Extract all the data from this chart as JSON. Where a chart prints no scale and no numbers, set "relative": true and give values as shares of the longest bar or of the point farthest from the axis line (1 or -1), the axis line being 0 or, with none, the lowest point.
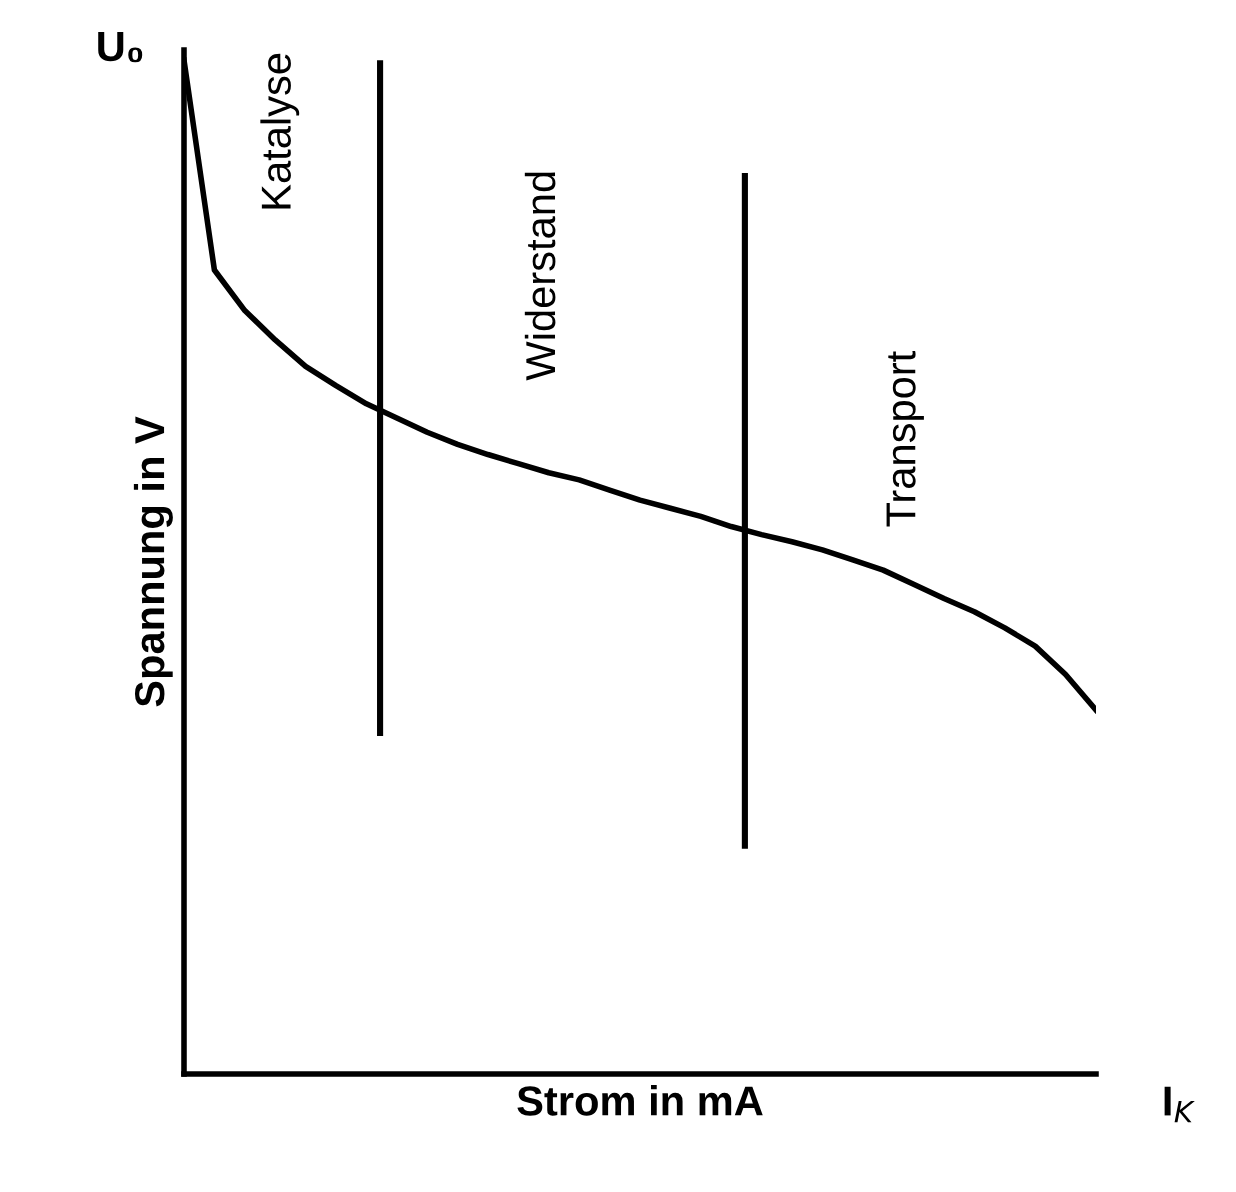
{
  "chart_data": {
    "type": "line",
    "relative": true,
    "xlabel": "Strom in mA",
    "ylabel": "Spannung in V",
    "categories": [
      null,
      null,
      null,
      null,
      null,
      null,
      null,
      null,
      null,
      null,
      null,
      null,
      null,
      null,
      null,
      null,
      null,
      null,
      null,
      null,
      null,
      null,
      null,
      null,
      null,
      null,
      null,
      null,
      null,
      null,
      null
    ],
    "series": [
      {
        "color": "#000000",
        "values": [
          1.0,
          0.793,
          0.753,
          0.724,
          0.698,
          0.679,
          0.661,
          0.647,
          0.633,
          0.621,
          0.611,
          0.602,
          0.593,
          0.586,
          0.576,
          0.566,
          0.558,
          0.55,
          0.54,
          0.532,
          0.525,
          0.517,
          0.507,
          0.497,
          0.483,
          0.469,
          0.456,
          0.44,
          0.422,
          0.394,
          0.359
        ]
      }
    ],
    "annotations": [
      "U₀",
      "I$_{K}$",
      "Katalyse",
      "Widerstand",
      "Transport"
    ],
    "legend": false,
    "marker": "none",
    "line_style": "solid"
  }
}
